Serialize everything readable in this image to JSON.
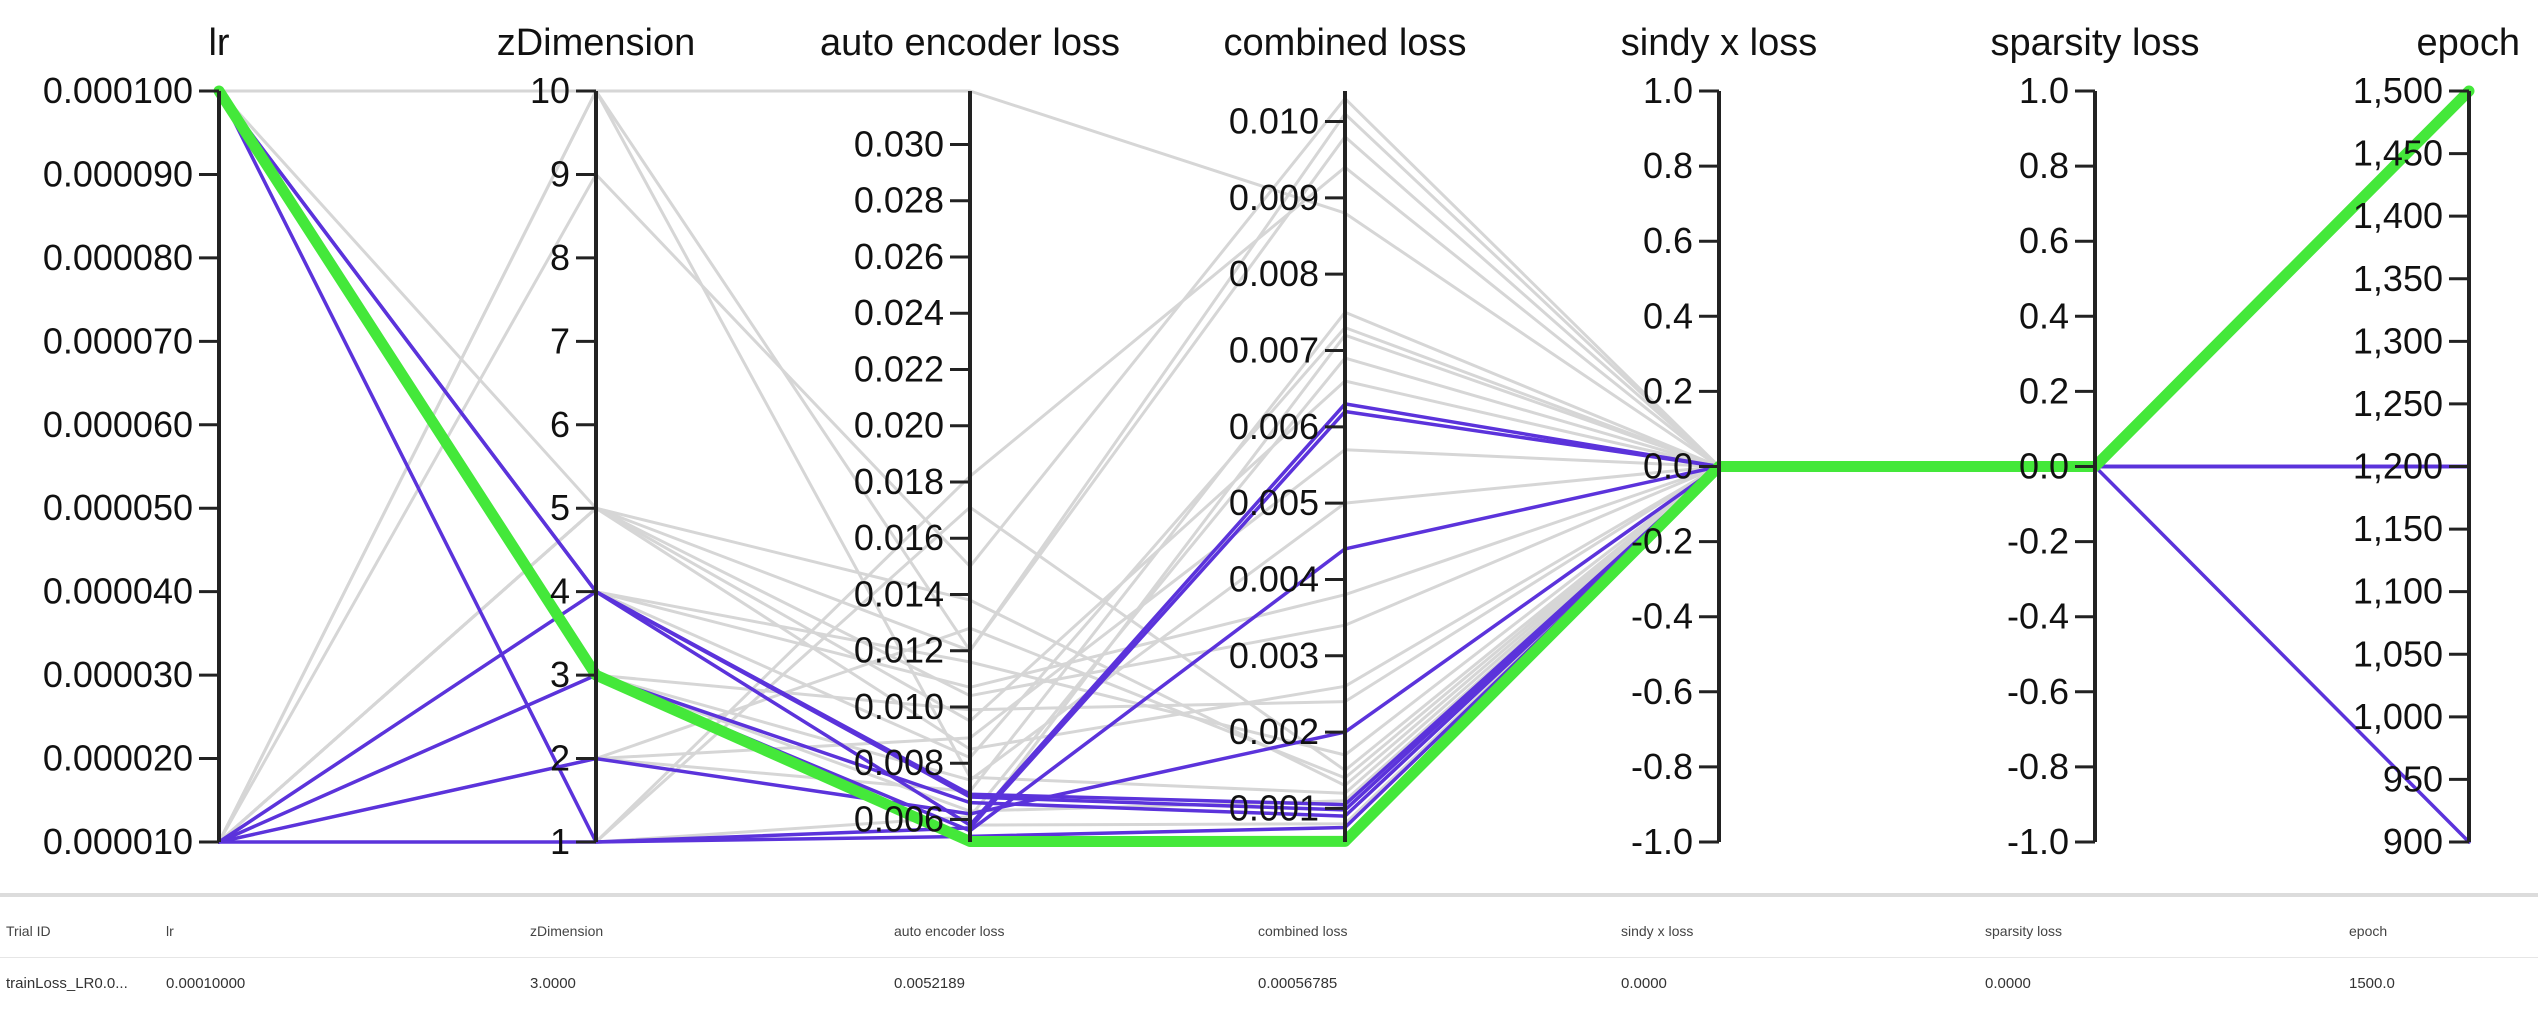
{
  "chart_data": {
    "type": "parallel-coordinates",
    "axes": [
      {
        "name": "lr",
        "min": 1e-05,
        "max": 0.0001,
        "ticks": [
          1e-05,
          2e-05,
          3e-05,
          4e-05,
          5e-05,
          6e-05,
          7e-05,
          8e-05,
          9e-05,
          0.0001
        ],
        "tick_labels": [
          "0.000010",
          "0.000020",
          "0.000030",
          "0.000040",
          "0.000050",
          "0.000060",
          "0.000070",
          "0.000080",
          "0.000090",
          "0.000100"
        ]
      },
      {
        "name": "zDimension",
        "min": 1,
        "max": 10,
        "ticks": [
          1,
          2,
          3,
          4,
          5,
          6,
          7,
          8,
          9,
          10
        ],
        "tick_labels": [
          "1",
          "2",
          "3",
          "4",
          "5",
          "6",
          "7",
          "8",
          "9",
          "10"
        ]
      },
      {
        "name": "auto encoder loss",
        "min": 0.0052,
        "max": 0.0319,
        "ticks": [
          0.006,
          0.008,
          0.01,
          0.012,
          0.014,
          0.016,
          0.018,
          0.02,
          0.022,
          0.024,
          0.026,
          0.028,
          0.03
        ],
        "tick_labels": [
          "0.006",
          "0.008",
          "0.010",
          "0.012",
          "0.014",
          "0.016",
          "0.018",
          "0.020",
          "0.022",
          "0.024",
          "0.026",
          "0.028",
          "0.030"
        ]
      },
      {
        "name": "combined loss",
        "min": 0.00056,
        "max": 0.0104,
        "ticks": [
          0.001,
          0.002,
          0.003,
          0.004,
          0.005,
          0.006,
          0.007,
          0.008,
          0.009,
          0.01
        ],
        "tick_labels": [
          "0.001",
          "0.002",
          "0.003",
          "0.004",
          "0.005",
          "0.006",
          "0.007",
          "0.008",
          "0.009",
          "0.010"
        ]
      },
      {
        "name": "sindy x loss",
        "min": -1,
        "max": 1,
        "ticks": [
          -1,
          -0.8,
          -0.6,
          -0.4,
          -0.2,
          0,
          0.2,
          0.4,
          0.6,
          0.8,
          1
        ],
        "tick_labels": [
          "-1.0",
          "-0.8",
          "-0.6",
          "-0.4",
          "-0.2",
          "0.0",
          "0.2",
          "0.4",
          "0.6",
          "0.8",
          "1.0"
        ]
      },
      {
        "name": "sparsity loss",
        "min": -1,
        "max": 1,
        "ticks": [
          -1,
          -0.8,
          -0.6,
          -0.4,
          -0.2,
          0,
          0.2,
          0.4,
          0.6,
          0.8,
          1
        ],
        "tick_labels": [
          "-1.0",
          "-0.8",
          "-0.6",
          "-0.4",
          "-0.2",
          "0.0",
          "0.2",
          "0.4",
          "0.6",
          "0.8",
          "1.0"
        ]
      },
      {
        "name": "epoch",
        "min": 900,
        "max": 1500,
        "ticks": [
          900,
          950,
          1000,
          1050,
          1100,
          1150,
          1200,
          1250,
          1300,
          1350,
          1400,
          1450,
          1500
        ],
        "tick_labels": [
          "900",
          "950",
          "1,000",
          "1,050",
          "1,100",
          "1,150",
          "1,200",
          "1,250",
          "1,300",
          "1,350",
          "1,400",
          "1,450",
          "1,500"
        ]
      }
    ],
    "highlight_color": "#44e83a",
    "active_color": "#5b33db",
    "inactive_color": "#d6d6d6",
    "highlighted_trial": [
      0.0001,
      3,
      0.0052189,
      0.00056785,
      0,
      0,
      1500
    ],
    "active_trials": [
      [
        0.0001,
        4,
        0.0069,
        0.00105,
        0,
        0,
        1500
      ],
      [
        0.0001,
        4,
        0.0068,
        0.00098,
        0,
        0,
        1500
      ],
      [
        0.0001,
        3,
        0.0066,
        0.0009,
        0,
        0,
        1500
      ],
      [
        0.0001,
        1,
        0.0057,
        0.0062,
        0,
        0,
        1200
      ],
      [
        1e-05,
        4,
        0.0058,
        0.0063,
        0,
        0,
        1200
      ],
      [
        1e-05,
        3,
        0.0056,
        0.0044,
        0,
        0,
        1200
      ],
      [
        1e-05,
        2,
        0.0062,
        0.002,
        0,
        0,
        1200
      ],
      [
        1e-05,
        1,
        0.0054,
        0.00075,
        0,
        0,
        900
      ]
    ],
    "inactive_trials": [
      [
        0.0001,
        5,
        0.0085,
        0.0026,
        0,
        0,
        1500
      ],
      [
        0.0001,
        10,
        0.0319,
        0.0088,
        0,
        0,
        1500
      ],
      [
        1e-05,
        9,
        0.015,
        0.0103,
        0,
        0,
        1500
      ],
      [
        1e-05,
        5,
        0.012,
        0.0101,
        0,
        0,
        1500
      ],
      [
        1e-05,
        10,
        0.0075,
        0.0012,
        0,
        0,
        1500
      ],
      [
        1e-05,
        10,
        0.012,
        0.0098,
        0,
        0,
        1500
      ],
      [
        1e-05,
        2,
        0.007,
        0.0075,
        0,
        0,
        1500
      ],
      [
        1e-05,
        3,
        0.0056,
        0.0072,
        0,
        0,
        1500
      ],
      [
        1e-05,
        1,
        0.0061,
        0.0069,
        0,
        0,
        1500
      ],
      [
        1e-05,
        4,
        0.0082,
        0.0073,
        0,
        0,
        1500
      ],
      [
        1e-05,
        5,
        0.0095,
        0.0066,
        0,
        0,
        1500
      ],
      [
        1e-05,
        2,
        0.0089,
        0.0057,
        0,
        0,
        1500
      ],
      [
        1e-05,
        3,
        0.0074,
        0.005,
        0,
        0,
        1500
      ],
      [
        1e-05,
        4,
        0.0107,
        0.0038,
        0,
        0,
        1500
      ],
      [
        1e-05,
        5,
        0.0104,
        0.0034,
        0,
        0,
        1500
      ],
      [
        1e-05,
        1,
        0.0171,
        0.0015,
        0,
        0,
        1500
      ],
      [
        1e-05,
        2,
        0.0128,
        0.0014,
        0,
        0,
        1500
      ],
      [
        1e-05,
        3,
        0.0063,
        0.0011,
        0,
        0,
        1500
      ],
      [
        1e-05,
        4,
        0.0058,
        0.0008,
        0,
        0,
        1500
      ],
      [
        1e-05,
        5,
        0.0138,
        0.0013,
        0,
        0,
        1500
      ],
      [
        1e-05,
        1,
        0.0182,
        0.0094,
        0,
        0,
        1500
      ],
      [
        1e-05,
        3,
        0.0099,
        0.0024,
        0,
        0,
        1500
      ],
      [
        1e-05,
        4,
        0.0116,
        0.0017,
        0,
        0,
        1500
      ]
    ]
  },
  "table": {
    "headers": [
      "Trial ID",
      "lr",
      "zDimension",
      "auto encoder loss",
      "combined loss",
      "sindy x loss",
      "sparsity loss",
      "epoch"
    ],
    "rows": [
      [
        "trainLoss_LR0.0...",
        "0.00010000",
        "3.0000",
        "0.0052189",
        "0.00056785",
        "0.0000",
        "0.0000",
        "1500.0"
      ]
    ]
  }
}
